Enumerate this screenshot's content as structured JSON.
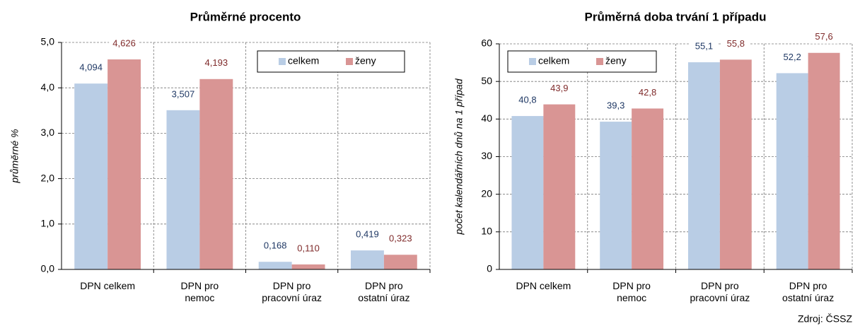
{
  "chart_data": [
    {
      "type": "bar",
      "title": "Průměrné  procento",
      "y_label": "průměrné %",
      "categories": [
        "DPN celkem",
        "DPN pro\nnemoc",
        "DPN pro\npracovní úraz",
        "DPN pro\nostatní úraz"
      ],
      "series": [
        {
          "name": "celkem",
          "color": "#b9cde5",
          "values": [
            4.094,
            3.507,
            0.168,
            0.419
          ],
          "value_labels": [
            "4,094",
            "3,507",
            "0,168",
            "0,419"
          ]
        },
        {
          "name": "ženy",
          "color": "#d99594",
          "values": [
            4.626,
            4.193,
            0.11,
            0.323
          ],
          "value_labels": [
            "4,626",
            "4,193",
            "0,110",
            "0,323"
          ]
        }
      ],
      "ylim": [
        0,
        5
      ],
      "yticks": [
        {
          "value": 0,
          "label": "0,0"
        },
        {
          "value": 1,
          "label": "1,0"
        },
        {
          "value": 2,
          "label": "2,0"
        },
        {
          "value": 3,
          "label": "3,0"
        },
        {
          "value": 4,
          "label": "4,0"
        },
        {
          "value": 5,
          "label": "5,0"
        }
      ],
      "grid": true,
      "legend": "upper right"
    },
    {
      "type": "bar",
      "title": "Průměrná doba trvání 1 případu",
      "y_label": "počet kalendářních dnů na 1 případ",
      "categories": [
        "DPN celkem",
        "DPN pro\nnemoc",
        "DPN pro\npracovní úraz",
        "DPN pro\nostatní úraz"
      ],
      "series": [
        {
          "name": "celkem",
          "color": "#b9cde5",
          "values": [
            40.8,
            39.3,
            55.1,
            52.2
          ],
          "value_labels": [
            "40,8",
            "39,3",
            "55,1",
            "52,2"
          ]
        },
        {
          "name": "ženy",
          "color": "#d99594",
          "values": [
            43.9,
            42.8,
            55.8,
            57.6
          ],
          "value_labels": [
            "43,9",
            "42,8",
            "55,8",
            "57,6"
          ]
        }
      ],
      "ylim": [
        0,
        60
      ],
      "yticks": [
        0,
        10,
        20,
        30,
        40,
        50,
        60
      ],
      "grid": true,
      "legend": "upper left"
    }
  ],
  "source": "Zdroj: ČSSZ"
}
